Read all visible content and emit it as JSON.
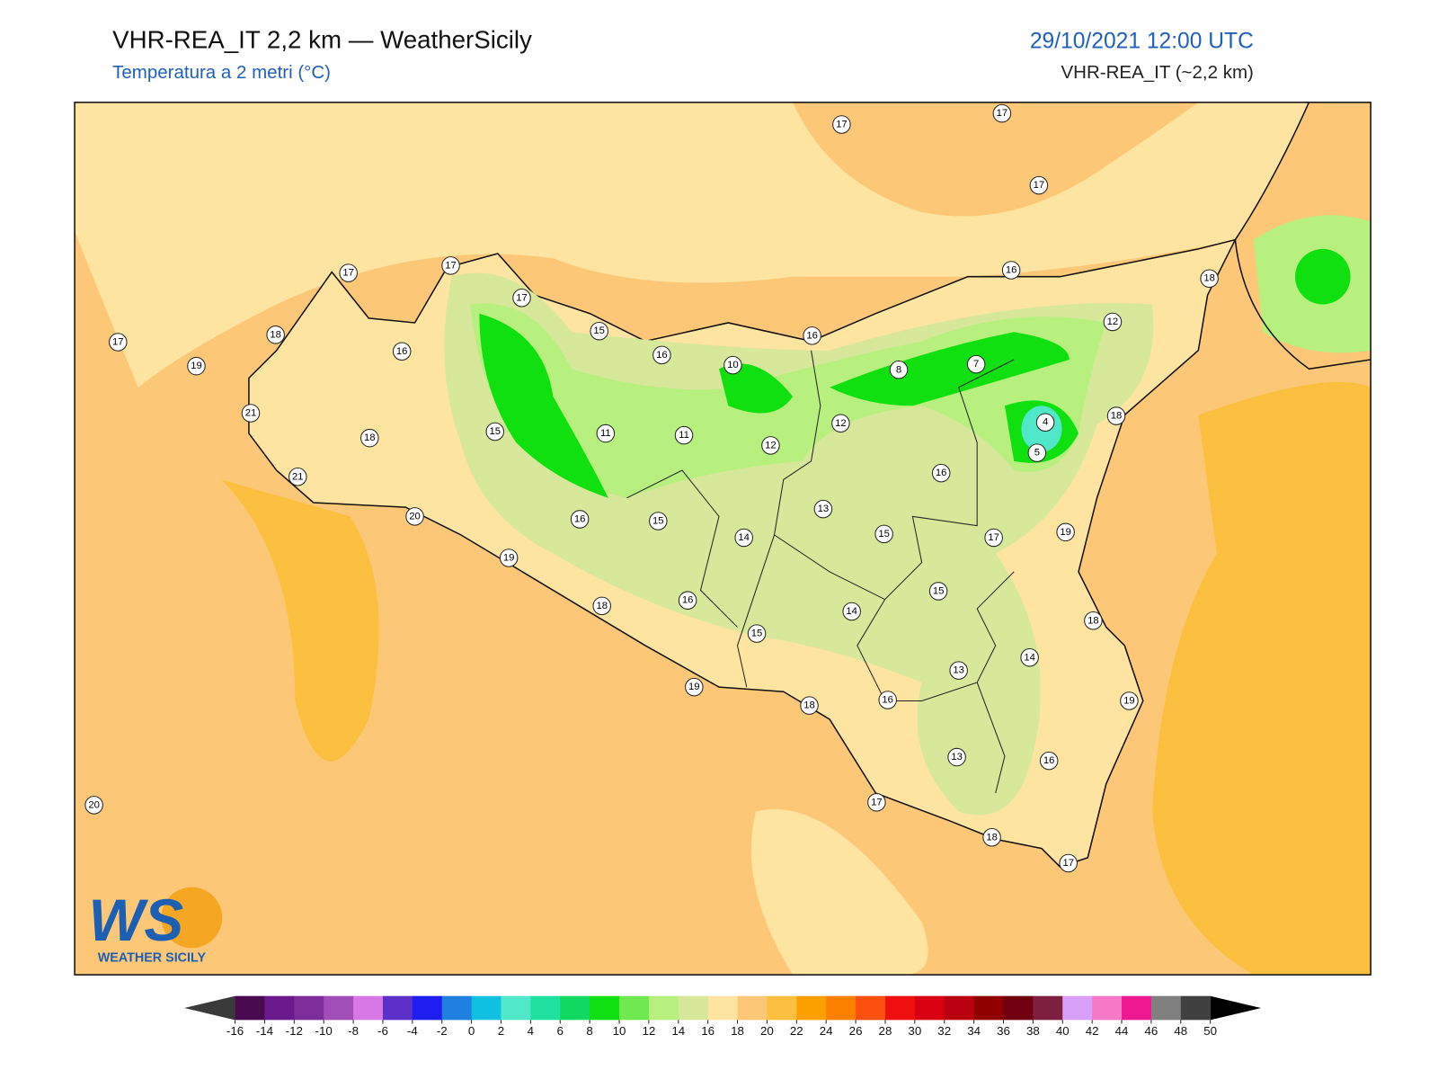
{
  "header": {
    "title": "VHR-REA_IT 2,2 km — WeatherSicily",
    "subtitle": "Temperatura a 2 metri (°C)",
    "datetime": "29/10/2021 12:00 UTC",
    "model": "VHR-REA_IT (~2,2 km)"
  },
  "map": {
    "stations": [
      17,
      17,
      17,
      17,
      17,
      17,
      18,
      17,
      19,
      16,
      15,
      16,
      16,
      16,
      18,
      12,
      10,
      8,
      7,
      4,
      5,
      18,
      21,
      18,
      15,
      11,
      11,
      12,
      12,
      16,
      21,
      20,
      16,
      15,
      14,
      13,
      15,
      17,
      19,
      19,
      18,
      16,
      15,
      14,
      15,
      18,
      14,
      13,
      19,
      18,
      16,
      19,
      13,
      16,
      17,
      18,
      17,
      20
    ]
  },
  "colorbar": {
    "ticks": [
      -16,
      -14,
      -12,
      -10,
      -8,
      -6,
      -4,
      -2,
      0,
      2,
      4,
      6,
      8,
      10,
      12,
      14,
      16,
      18,
      20,
      22,
      24,
      26,
      28,
      30,
      32,
      34,
      36,
      38,
      40,
      42,
      44,
      46,
      48,
      50
    ],
    "colors": [
      "#4a0a50",
      "#6a1a8c",
      "#7d2d9a",
      "#a04db8",
      "#d878e6",
      "#5c2fc8",
      "#1e1ef0",
      "#2080e0",
      "#10c0e0",
      "#50e8c8",
      "#20e0a0",
      "#10d860",
      "#10e010",
      "#70e850",
      "#b8f080",
      "#d8e89a",
      "#fde4a0",
      "#fcc878",
      "#fcc040",
      "#fca000",
      "#fc8000",
      "#fc5010",
      "#f01010",
      "#d80010",
      "#b80010",
      "#900000",
      "#700010",
      "#802040",
      "#d8a0f8",
      "#f878c8",
      "#f01890",
      "#808080",
      "#404040"
    ]
  },
  "logo": {
    "initials": "WS",
    "name": "WEATHER SICILY"
  }
}
